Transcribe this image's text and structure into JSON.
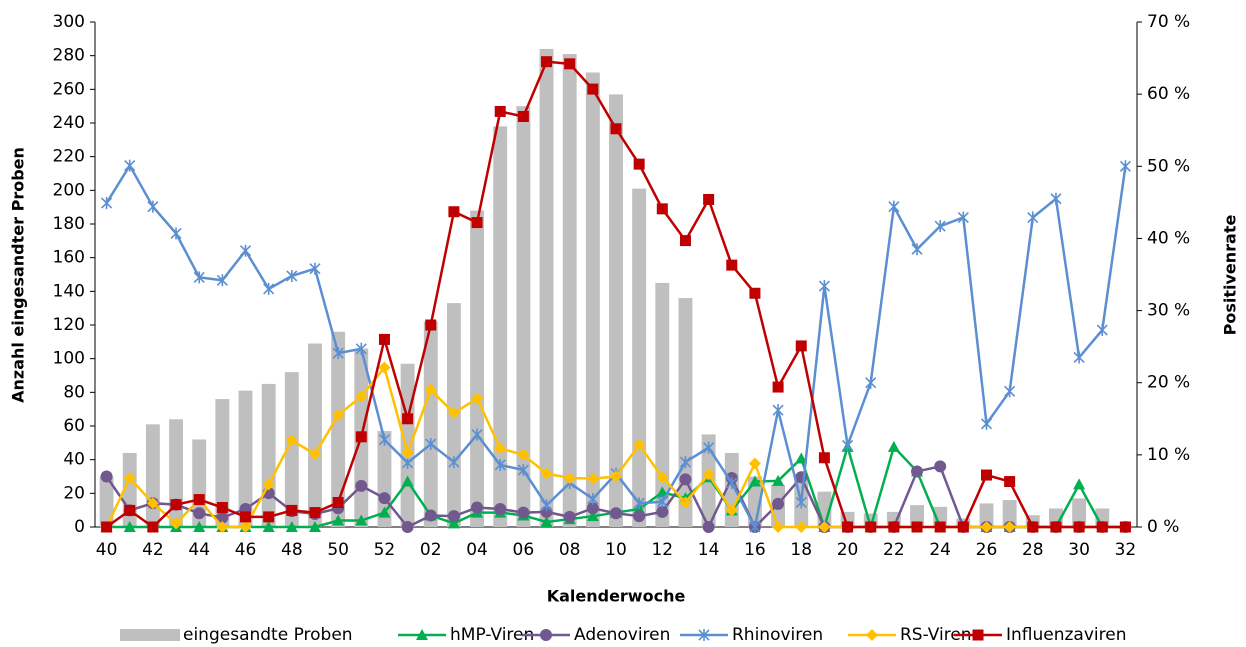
{
  "chart_data": {
    "type": "bar-line",
    "x_label": "Kalenderwoche",
    "y_label": "Anzahl eingesandter Proben",
    "y2_label": "Positivenrate",
    "categories": [
      "40",
      null,
      "42",
      null,
      "44",
      null,
      "46",
      null,
      "48",
      null,
      "50",
      null,
      "52",
      null,
      "02",
      null,
      "04",
      null,
      "06",
      null,
      "08",
      null,
      "10",
      null,
      "12",
      null,
      "14",
      null,
      "16",
      null,
      "18",
      null,
      "20",
      null,
      "22",
      null,
      "24",
      null,
      "26",
      null,
      "28",
      null,
      "30",
      null,
      "32"
    ],
    "ylim": [
      0,
      300
    ],
    "yticks": [
      0,
      20,
      40,
      60,
      80,
      100,
      120,
      140,
      160,
      180,
      200,
      220,
      240,
      260,
      280,
      300
    ],
    "y2lim": [
      0,
      70
    ],
    "y2ticks": [
      {
        "value": 0,
        "label": "0 %"
      },
      {
        "value": 10,
        "label": "10 %"
      },
      {
        "value": 20,
        "label": "20 %"
      },
      {
        "value": 30,
        "label": "30 %"
      },
      {
        "value": 40,
        "label": "40 %"
      },
      {
        "value": 50,
        "label": "50 %"
      },
      {
        "value": 60,
        "label": "60 %"
      },
      {
        "value": 70,
        "label": "70 %"
      }
    ],
    "series": [
      {
        "name": "eingesandte Proben",
        "type": "bar",
        "axis": "y",
        "color": "#bfbfbf",
        "values": [
          30,
          44,
          61,
          64,
          52,
          76,
          81,
          85,
          92,
          109,
          116,
          106,
          57,
          97,
          122,
          133,
          188,
          238,
          250,
          284,
          281,
          270,
          257,
          201,
          145,
          136,
          55,
          44,
          30,
          25,
          29,
          21,
          9,
          8,
          9,
          13,
          12,
          5,
          14,
          16,
          7,
          11,
          17,
          11,
          0
        ]
      },
      {
        "name": "hMP-Viren",
        "type": "line",
        "axis": "y2",
        "color": "#00b050",
        "marker": "triangle",
        "values": [
          0,
          0,
          0,
          0,
          0,
          0,
          0,
          0,
          0,
          0,
          0.9,
          0.9,
          2.0,
          6.3,
          1.6,
          0.5,
          2.0,
          2.0,
          1.6,
          0.7,
          1.1,
          1.5,
          2.0,
          2.5,
          4.8,
          4.0,
          6.9,
          2.3,
          6.3,
          6.4,
          9.5,
          0,
          11.1,
          0,
          11.1,
          7.7,
          0,
          0,
          0,
          0,
          0,
          0,
          5.9,
          0,
          0
        ]
      },
      {
        "name": "Adenoviren",
        "type": "line",
        "axis": "y2",
        "color": "#71588f",
        "marker": "circle",
        "values": [
          7.0,
          2.3,
          3.3,
          3.1,
          1.9,
          1.3,
          2.5,
          4.7,
          2.2,
          1.8,
          2.6,
          5.7,
          4.0,
          0,
          1.6,
          1.5,
          2.7,
          2.5,
          2.0,
          2.1,
          1.4,
          2.6,
          1.9,
          1.5,
          2.1,
          6.6,
          0,
          6.8,
          0,
          3.2,
          6.9,
          0,
          0,
          0,
          0,
          7.7,
          8.4,
          0,
          0,
          0,
          0,
          0,
          0,
          0,
          0
        ]
      },
      {
        "name": "Rhinoviren",
        "type": "line",
        "axis": "y2",
        "color": "#5b8fd2",
        "marker": "star",
        "values": [
          44.9,
          50.1,
          44.4,
          40.7,
          34.6,
          34.2,
          38.3,
          33.0,
          34.8,
          35.8,
          24.1,
          24.7,
          12.1,
          8.9,
          11.5,
          9.0,
          12.8,
          8.6,
          7.9,
          3.0,
          6.1,
          3.9,
          7.4,
          3.3,
          3.5,
          9.0,
          11.0,
          6.1,
          0,
          16.2,
          3.4,
          33.4,
          11.3,
          20.0,
          44.4,
          38.5,
          41.7,
          42.9,
          14.3,
          18.8,
          42.9,
          45.5,
          23.5,
          27.3,
          50.0
        ]
      },
      {
        "name": "RS-Viren",
        "type": "line",
        "axis": "y2",
        "color": "#ffc000",
        "marker": "diamond",
        "values": [
          0,
          6.8,
          3.3,
          0.5,
          3.8,
          0,
          0,
          5.9,
          12.0,
          10.1,
          15.5,
          18.1,
          22.1,
          10.3,
          19.0,
          15.8,
          17.8,
          10.9,
          10.0,
          7.4,
          6.8,
          6.7,
          7.0,
          11.4,
          6.9,
          3.4,
          7.3,
          2.3,
          8.8,
          0,
          0,
          0,
          0,
          0,
          0,
          0,
          0,
          0,
          0,
          0,
          0,
          0,
          0,
          0,
          0
        ]
      },
      {
        "name": "Influenzaviren",
        "type": "line",
        "axis": "y2",
        "color": "#c00000",
        "marker": "square",
        "values": [
          0,
          2.3,
          0,
          3.1,
          3.8,
          2.7,
          1.4,
          1.4,
          2.3,
          2.0,
          3.4,
          12.5,
          26.0,
          15.0,
          28.0,
          43.7,
          42.2,
          57.6,
          56.9,
          64.5,
          64.2,
          60.7,
          55.2,
          50.3,
          44.1,
          39.7,
          45.4,
          36.3,
          32.4,
          19.4,
          25.1,
          9.6,
          0,
          0,
          0,
          0,
          0,
          0,
          7.2,
          6.3,
          0,
          0,
          0,
          0,
          0
        ]
      }
    ]
  }
}
